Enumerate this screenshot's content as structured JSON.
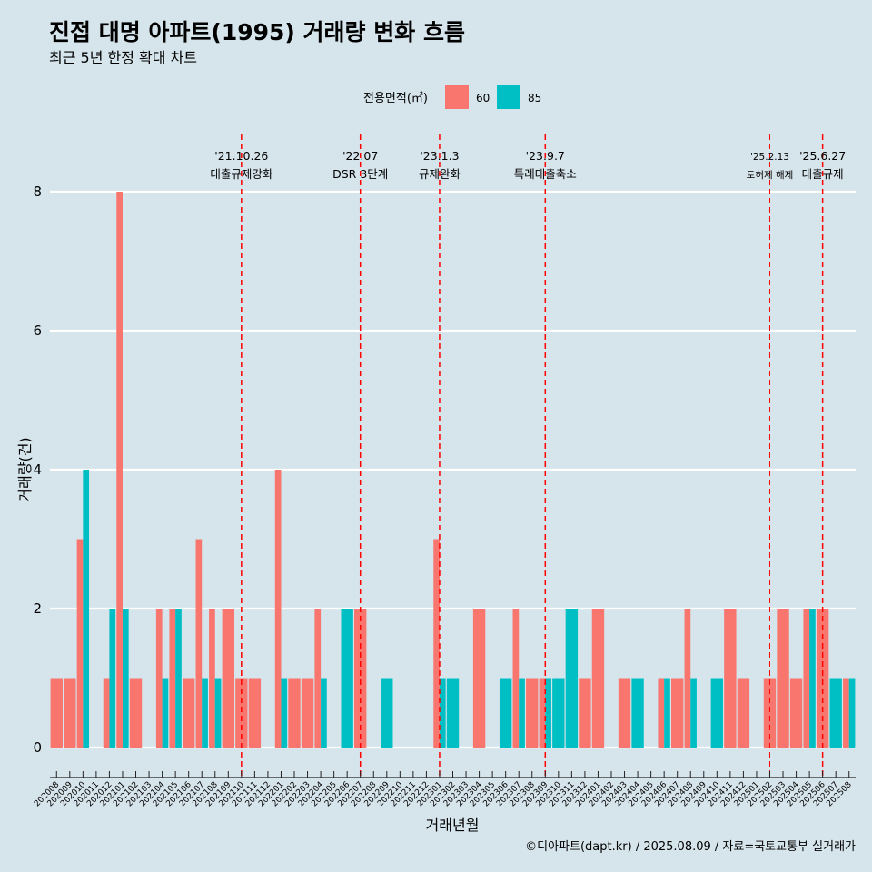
{
  "colors": {
    "s60": "#f8766d",
    "s85": "#00bfc4",
    "background": "#d6e4eb",
    "event": "#ff0000",
    "grid": "#ffffff"
  },
  "chart_data": {
    "type": "bar",
    "title": "진접 대명 아파트(1995) 거래량 변화 흐름",
    "subtitle": "최근 5년 한정 확대 차트",
    "xlabel": "거래년월",
    "ylabel": "거래량(건)",
    "ylim": [
      0,
      8
    ],
    "yticks": [
      0,
      2,
      4,
      6,
      8
    ],
    "grid": true,
    "legend": {
      "title": "전용면적(㎡)",
      "position": "top"
    },
    "categories": [
      "202008",
      "202009",
      "202010",
      "202011",
      "202012",
      "202101",
      "202102",
      "202103",
      "202104",
      "202105",
      "202106",
      "202107",
      "202108",
      "202109",
      "202110",
      "202111",
      "202112",
      "202201",
      "202202",
      "202203",
      "202204",
      "202205",
      "202206",
      "202207",
      "202208",
      "202209",
      "202210",
      "202211",
      "202212",
      "202301",
      "202302",
      "202303",
      "202304",
      "202305",
      "202306",
      "202307",
      "202308",
      "202309",
      "202310",
      "202311",
      "202312",
      "202401",
      "202402",
      "202403",
      "202404",
      "202405",
      "202406",
      "202407",
      "202408",
      "202409",
      "202410",
      "202411",
      "202412",
      "202501",
      "202502",
      "202503",
      "202504",
      "202505",
      "202506",
      "202507",
      "202508"
    ],
    "series": [
      {
        "name": "60",
        "values": [
          1,
          1,
          3,
          0,
          1,
          8,
          1,
          0,
          2,
          2,
          1,
          3,
          2,
          2,
          1,
          1,
          0,
          4,
          1,
          1,
          2,
          0,
          0,
          2,
          0,
          0,
          0,
          0,
          0,
          3,
          0,
          0,
          2,
          0,
          0,
          2,
          1,
          1,
          0,
          0,
          1,
          2,
          0,
          1,
          0,
          0,
          1,
          1,
          2,
          0,
          0,
          2,
          1,
          0,
          1,
          2,
          1,
          2,
          2,
          0,
          1
        ]
      },
      {
        "name": "85",
        "values": [
          0,
          0,
          4,
          0,
          2,
          2,
          0,
          0,
          1,
          2,
          0,
          1,
          1,
          0,
          0,
          0,
          0,
          1,
          0,
          0,
          1,
          0,
          2,
          0,
          0,
          1,
          0,
          0,
          0,
          1,
          1,
          0,
          0,
          0,
          1,
          1,
          0,
          1,
          1,
          2,
          0,
          0,
          0,
          0,
          1,
          0,
          1,
          0,
          1,
          0,
          1,
          0,
          0,
          0,
          0,
          0,
          0,
          2,
          0,
          1,
          1
        ]
      }
    ],
    "events": [
      {
        "date": "'21.10.26",
        "label": "대출규제강화",
        "category": "202110",
        "small": false
      },
      {
        "date": "'22.07",
        "label": "DSR 3단계",
        "category": "202207",
        "small": false
      },
      {
        "date": "'23.1.3",
        "label": "규제완화",
        "category": "202301",
        "small": false
      },
      {
        "date": "'23.9.7",
        "label": "특례대출축소",
        "category": "202309",
        "small": false
      },
      {
        "date": "'25.2.13",
        "label": "토허제 해제",
        "category": "202502",
        "small": true
      },
      {
        "date": "'25.6.27",
        "label": "대출규제",
        "category": "202506",
        "small": false
      }
    ]
  },
  "caption": "©디아파트(dapt.kr) / 2025.08.09 / 자료=국토교통부 실거래가"
}
